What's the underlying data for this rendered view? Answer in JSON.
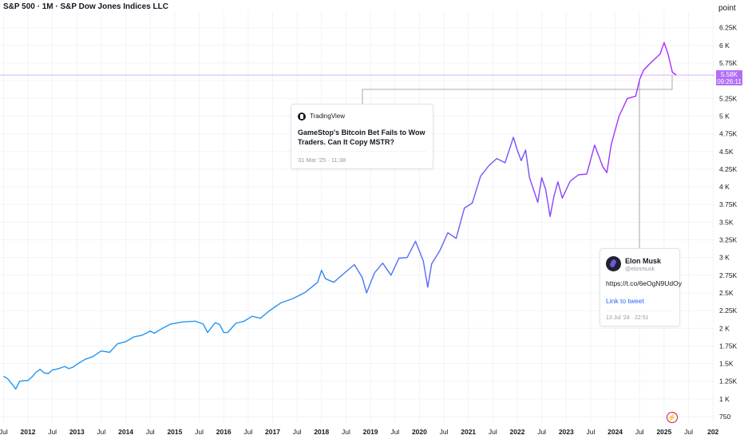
{
  "header": {
    "title": "S&P 500 · 1M · S&P Dow Jones Indices LLC",
    "unit_label": "point"
  },
  "price_tag": {
    "value": "5.58K",
    "countdown": "09:26:11"
  },
  "news_card": {
    "source": "TradingView",
    "headline": "GameStop's Bitcoin Bet Fails to Wow Traders. Can It Copy MSTR?",
    "date": "31 Mar '25 · 11:38"
  },
  "tweet_card": {
    "name": "Elon Musk",
    "handle": "@elonmusk",
    "text": "https://t.co/6eOgN9UdOy",
    "link_label": "Link to tweet",
    "date": "13 Jul '24 · 22:51"
  },
  "colors": {
    "line_start": "#2196f3",
    "line_end": "#b026ff",
    "price_line": "#b26ff6",
    "grid": "#f2f3f6"
  },
  "icons": {
    "lightning": "lightning-icon",
    "tradingview": "tradingview-logo-icon"
  },
  "chart_data": {
    "type": "line",
    "title": "S&P 500 · 1M · S&P Dow Jones Indices LLC",
    "ylabel": "point",
    "ylim": [
      750,
      6450
    ],
    "xlim": [
      2011.5,
      2026.0
    ],
    "y_ticks": [
      "6.25K",
      "6 K",
      "5.75K",
      "5.5K",
      "5.25K",
      "5 K",
      "4.75K",
      "4.5K",
      "4.25K",
      "4 K",
      "3.75K",
      "3.5K",
      "3.25K",
      "3 K",
      "2.75K",
      "2.5K",
      "2.25K",
      "2 K",
      "1.75K",
      "1.5K",
      "1.25K",
      "1 K",
      "750"
    ],
    "y_tick_values": [
      6250,
      6000,
      5750,
      5500,
      5250,
      5000,
      4750,
      4500,
      4250,
      4000,
      3750,
      3500,
      3250,
      3000,
      2750,
      2500,
      2250,
      2000,
      1750,
      1500,
      1250,
      1000,
      750
    ],
    "x_ticks": [
      "Jul",
      "2012",
      "Jul",
      "2013",
      "Jul",
      "2014",
      "Jul",
      "2015",
      "Jul",
      "2016",
      "Jul",
      "2017",
      "Jul",
      "2018",
      "Jul",
      "2019",
      "Jul",
      "2020",
      "Jul",
      "2021",
      "Jul",
      "2022",
      "Jul",
      "2023",
      "Jul",
      "2024",
      "Jul",
      "2025",
      "Jul",
      "202"
    ],
    "x_tick_values": [
      2011.5,
      2012.0,
      2012.5,
      2013.0,
      2013.5,
      2014.0,
      2014.5,
      2015.0,
      2015.5,
      2016.0,
      2016.5,
      2017.0,
      2017.5,
      2018.0,
      2018.5,
      2019.0,
      2019.5,
      2020.0,
      2020.5,
      2021.0,
      2021.5,
      2022.0,
      2022.5,
      2023.0,
      2023.5,
      2024.0,
      2024.5,
      2025.0,
      2025.5,
      2026.0
    ],
    "bold_x_ticks": [
      "2012",
      "2013",
      "2014",
      "2015",
      "2016",
      "2017",
      "2018",
      "2019",
      "2020",
      "2021",
      "2022",
      "2023",
      "2024",
      "2025",
      "202"
    ],
    "series": [
      {
        "x": [
          2011.5,
          2011.58,
          2011.67,
          2011.75,
          2011.83,
          2011.92,
          2012.0,
          2012.08,
          2012.17,
          2012.25,
          2012.33,
          2012.42,
          2012.5,
          2012.58,
          2012.67,
          2012.75,
          2012.83,
          2012.92,
          2013.0,
          2013.17,
          2013.33,
          2013.5,
          2013.67,
          2013.83,
          2014.0,
          2014.17,
          2014.33,
          2014.5,
          2014.58,
          2014.75,
          2014.92,
          2015.17,
          2015.42,
          2015.58,
          2015.67,
          2015.83,
          2015.92,
          2016.0,
          2016.08,
          2016.25,
          2016.42,
          2016.58,
          2016.75,
          2016.92,
          2017.17,
          2017.42,
          2017.67,
          2017.92,
          2018.0,
          2018.08,
          2018.25,
          2018.5,
          2018.67,
          2018.83,
          2018.92,
          2019.08,
          2019.25,
          2019.42,
          2019.58,
          2019.75,
          2019.92,
          2020.08,
          2020.17,
          2020.25,
          2020.42,
          2020.58,
          2020.75,
          2020.92,
          2021.08,
          2021.25,
          2021.42,
          2021.58,
          2021.75,
          2021.92,
          2022.0,
          2022.08,
          2022.17,
          2022.25,
          2022.42,
          2022.5,
          2022.58,
          2022.67,
          2022.75,
          2022.83,
          2022.92,
          2023.08,
          2023.25,
          2023.42,
          2023.58,
          2023.75,
          2023.83,
          2023.92,
          2024.08,
          2024.25,
          2024.42,
          2024.5,
          2024.58,
          2024.75,
          2024.92,
          2025.0,
          2025.08,
          2025.17,
          2025.25
        ],
        "y": [
          1320,
          1290,
          1215,
          1140,
          1250,
          1260,
          1260,
          1310,
          1380,
          1420,
          1370,
          1360,
          1410,
          1420,
          1440,
          1460,
          1430,
          1450,
          1490,
          1560,
          1600,
          1680,
          1660,
          1780,
          1810,
          1880,
          1900,
          1960,
          1930,
          2000,
          2060,
          2090,
          2100,
          2060,
          1940,
          2080,
          2050,
          1940,
          1940,
          2070,
          2100,
          2170,
          2140,
          2240,
          2360,
          2420,
          2510,
          2650,
          2820,
          2700,
          2650,
          2800,
          2900,
          2720,
          2500,
          2780,
          2920,
          2750,
          2990,
          3000,
          3230,
          2950,
          2580,
          2910,
          3100,
          3350,
          3270,
          3700,
          3770,
          4150,
          4300,
          4400,
          4340,
          4700,
          4520,
          4370,
          4520,
          4130,
          3780,
          4130,
          3960,
          3580,
          3870,
          4070,
          3840,
          4080,
          4170,
          4180,
          4590,
          4280,
          4200,
          4600,
          5000,
          5250,
          5280,
          5520,
          5650,
          5770,
          5880,
          6040,
          5880,
          5620,
          5580
        ]
      }
    ],
    "last_value": "5.58K"
  }
}
